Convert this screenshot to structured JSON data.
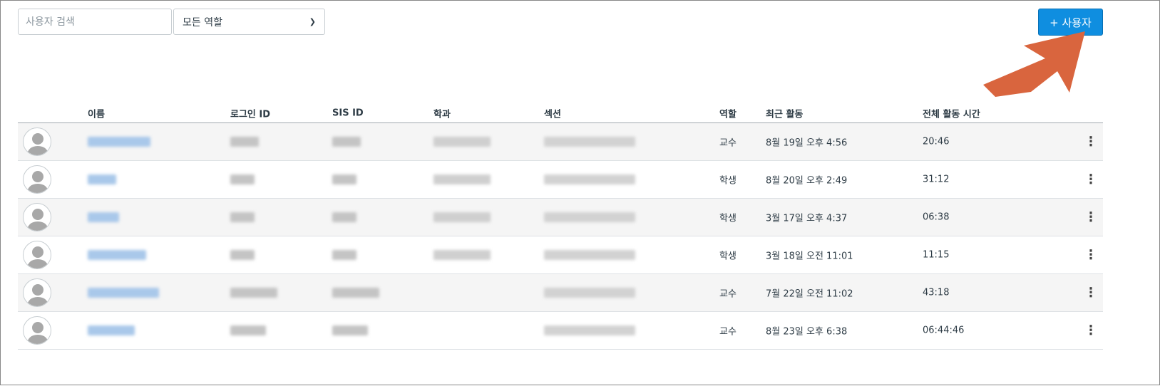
{
  "search": {
    "placeholder": "사용자 검색"
  },
  "role_filter": {
    "selected": "모든 역할"
  },
  "add_user_button": {
    "label": "+ 사용자"
  },
  "colors": {
    "accent": "#0f8ee0",
    "annotation_arrow": "#d9653e"
  },
  "table": {
    "headers": [
      "이름",
      "로그인 ID",
      "SIS ID",
      "학과",
      "섹션",
      "역할",
      "최근 활동",
      "전체 활동 시간"
    ],
    "rows": [
      {
        "role": "교수",
        "last_activity": "8월 19일 오후 4:56",
        "total_time": "20:46"
      },
      {
        "role": "학생",
        "last_activity": "8월 20일 오후 2:49",
        "total_time": "31:12"
      },
      {
        "role": "학생",
        "last_activity": "3월 17일 오후 4:37",
        "total_time": "06:38"
      },
      {
        "role": "학생",
        "last_activity": "3월 18일 오전 11:01",
        "total_time": "11:15"
      },
      {
        "role": "교수",
        "last_activity": "7월 22일 오전 11:02",
        "total_time": "43:18"
      },
      {
        "role": "교수",
        "last_activity": "8월 23일 오후 6:38",
        "total_time": "06:44:46"
      }
    ]
  }
}
